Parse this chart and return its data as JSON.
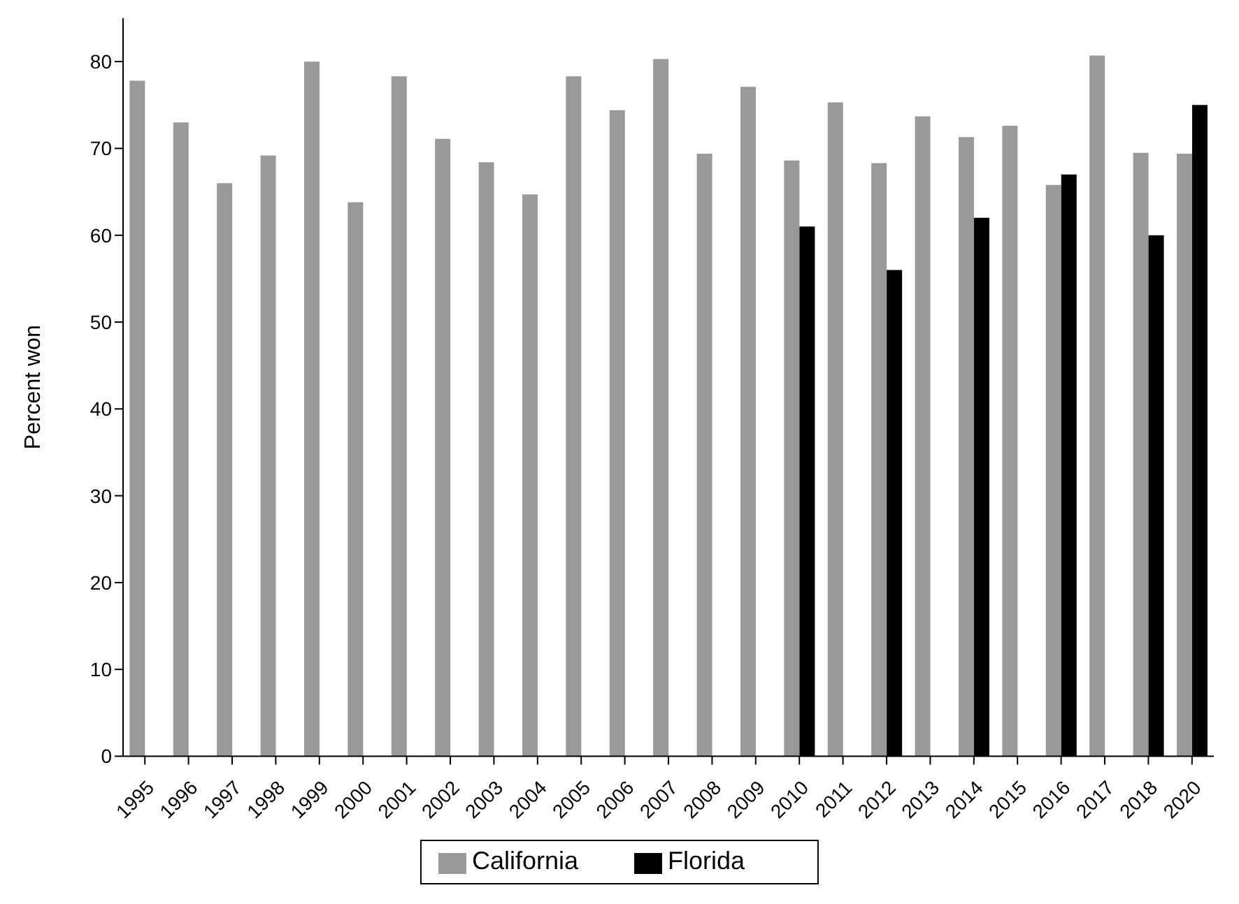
{
  "chart_data": {
    "type": "bar",
    "ylabel": "Percent won",
    "categories": [
      "1995",
      "1996",
      "1997",
      "1998",
      "1999",
      "2000",
      "2001",
      "2002",
      "2003",
      "2004",
      "2005",
      "2006",
      "2007",
      "2008",
      "2009",
      "2010",
      "2011",
      "2012",
      "2013",
      "2014",
      "2015",
      "2016",
      "2017",
      "2018",
      "2020"
    ],
    "series": [
      {
        "name": "California",
        "color": "#999999",
        "values": [
          77.8,
          73,
          66,
          69.2,
          80,
          63.8,
          78.3,
          71.1,
          68.4,
          64.7,
          78.3,
          74.4,
          80.3,
          69.4,
          77.1,
          68.6,
          75.3,
          68.3,
          73.7,
          71.3,
          72.6,
          65.8,
          80.7,
          69.5,
          69.4
        ]
      },
      {
        "name": "Florida",
        "color": "#000000",
        "values": [
          null,
          null,
          null,
          null,
          null,
          null,
          null,
          null,
          null,
          null,
          null,
          null,
          null,
          null,
          null,
          61,
          null,
          56,
          null,
          62,
          null,
          67,
          null,
          60,
          75
        ]
      }
    ],
    "ylim": [
      0,
      85
    ],
    "yticks": [
      0,
      10,
      20,
      30,
      40,
      50,
      60,
      70,
      80
    ],
    "grid": false,
    "legend": "bottom"
  }
}
